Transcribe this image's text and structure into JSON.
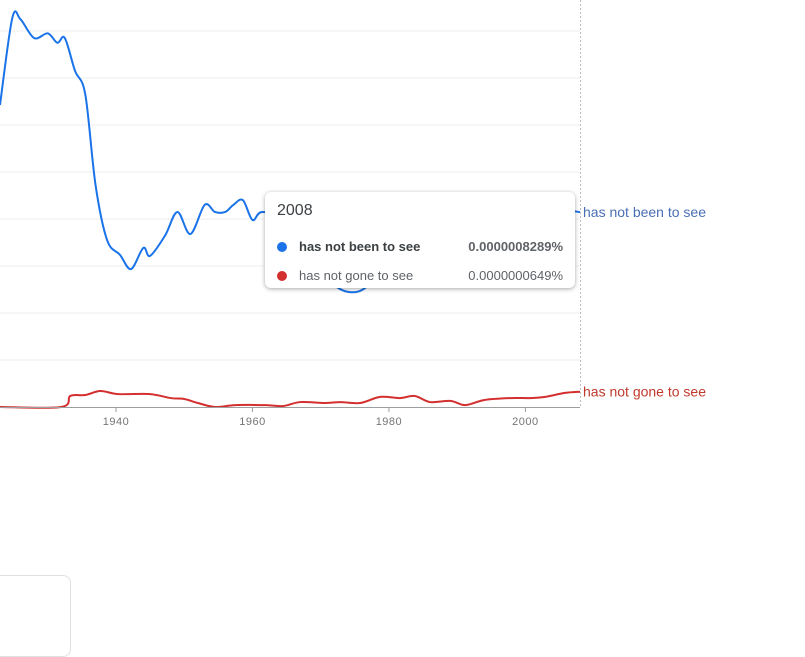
{
  "chart_data": {
    "type": "line",
    "value_unit": "percent",
    "xlim": [
      1923,
      2008
    ],
    "ylim": [
      0,
      1.7e-06
    ],
    "grid": true,
    "x_ticks": [
      1940,
      1960,
      1980,
      2000
    ],
    "x_tick_labels": [
      "1940",
      "1960",
      "1980",
      "2000"
    ],
    "series": [
      {
        "name": "has not been to see",
        "color": "#1a73e8",
        "label_color": "#4a6fb5",
        "x": [
          1923,
          1924.8,
          1926,
          1928,
          1930,
          1931.4,
          1932.5,
          1934,
          1935.5,
          1937,
          1938.7,
          1940.6,
          1942.2,
          1944,
          1945,
          1947.2,
          1949,
          1950.9,
          1953,
          1954.5,
          1956,
          1957.2,
          1958.6,
          1960,
          1961.4,
          1965,
          1968,
          1971,
          1974,
          1977,
          1980,
          1985,
          1990,
          1995,
          2000,
          2005,
          2008
        ],
        "values": [
          1.285e-06,
          1.655e-06,
          1.65e-06,
          1.57e-06,
          1.59e-06,
          1.55e-06,
          1.57e-06,
          1.43e-06,
          1.33e-06,
          9.45e-07,
          7.1e-07,
          6.47e-07,
          5.87e-07,
          6.77e-07,
          6.43e-07,
          7.3e-07,
          8.3e-07,
          7.36e-07,
          8.6e-07,
          8.3e-07,
          8.3e-07,
          8.6e-07,
          8.8e-07,
          7.96e-07,
          8.3e-07,
          8e-07,
          7.2e-07,
          5.5e-07,
          4.9e-07,
          5.2e-07,
          6.8e-07,
          7.8e-07,
          8.2e-07,
          8.5e-07,
          8.3e-07,
          8.4e-07,
          8.289e-07
        ]
      },
      {
        "name": "has not gone to see",
        "color": "#d32f2f",
        "label_color": "#c0392b",
        "x": [
          1923,
          1932,
          1933.3,
          1935.5,
          1937.7,
          1940.3,
          1945,
          1948,
          1950,
          1952,
          1954.5,
          1957.5,
          1962,
          1964.5,
          1967,
          1970.6,
          1972.9,
          1975.8,
          1978.7,
          1981.6,
          1983.8,
          1986,
          1989,
          1991.2,
          1994,
          1997.8,
          2000.7,
          2002.9,
          2005.8,
          2008
        ],
        "values": [
          0,
          0,
          4.7e-08,
          5.1e-08,
          6.8e-08,
          5.5e-08,
          5.5e-08,
          3.8e-08,
          3.4e-08,
          1.7e-08,
          0,
          8e-09,
          8e-09,
          4e-09,
          2.1e-08,
          1.7e-08,
          2.1e-08,
          1.7e-08,
          4.3e-08,
          3.8e-08,
          4.7e-08,
          2.1e-08,
          2.6e-08,
          8e-09,
          3e-08,
          3.8e-08,
          3.8e-08,
          4.3e-08,
          6e-08,
          6.49e-08
        ]
      }
    ],
    "tooltip": {
      "year": "2008",
      "rows": [
        {
          "label": "has not been to see",
          "value": "0.0000008289%"
        },
        {
          "label": "has not gone to see",
          "value": "0.0000000649%"
        }
      ]
    }
  }
}
